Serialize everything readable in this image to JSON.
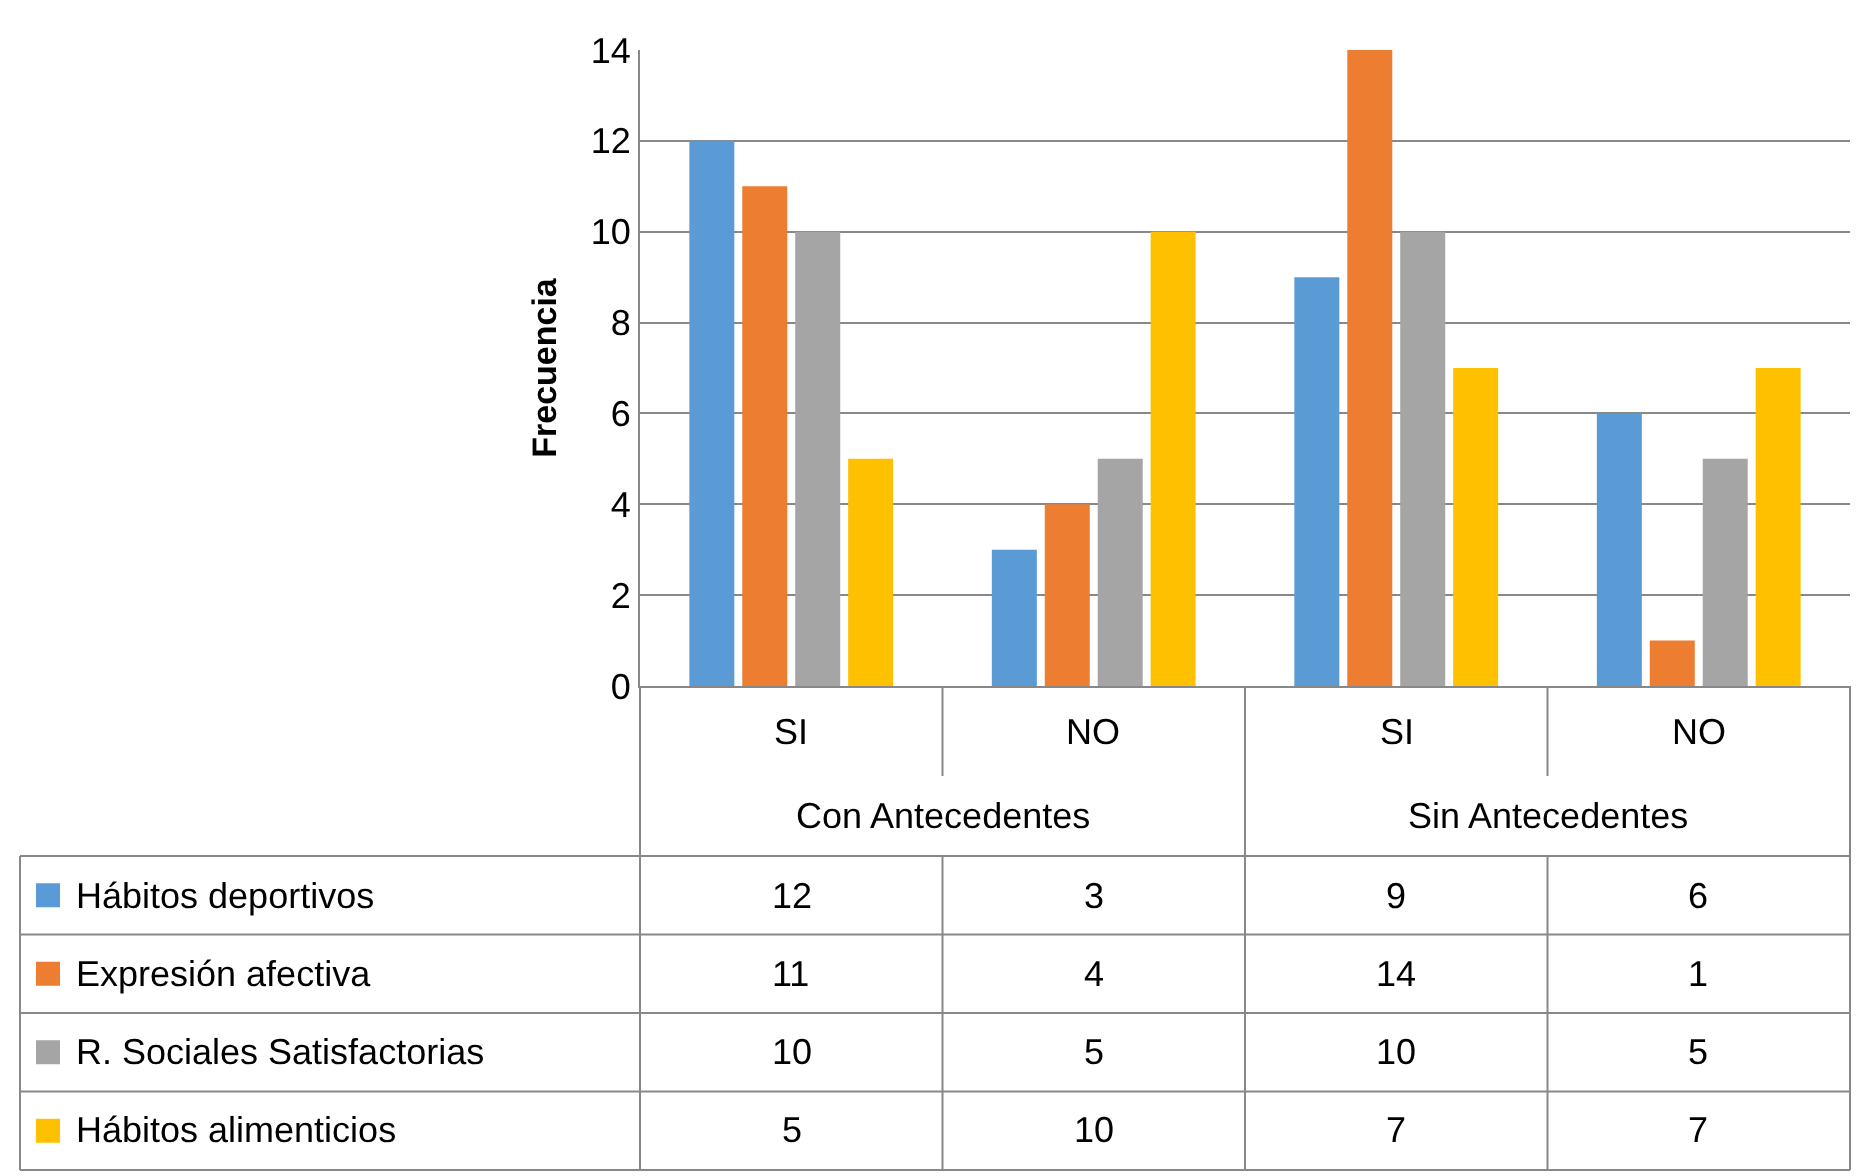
{
  "chart_data": {
    "type": "bar",
    "ylabel": "Frecuencia",
    "categories": [
      "SI",
      "NO",
      "SI",
      "NO"
    ],
    "annotations": [
      "Con Antecedentes",
      "Sin Antecedentes"
    ],
    "series": [
      {
        "name": "Hábitos deportivos",
        "color": "#5b9bd5",
        "values": [
          12,
          3,
          9,
          6
        ]
      },
      {
        "name": "Expresión afectiva",
        "color": "#ed7d31",
        "values": [
          11,
          4,
          14,
          1
        ]
      },
      {
        "name": "R. Sociales Satisfactorias",
        "color": "#a5a5a5",
        "values": [
          10,
          5,
          10,
          5
        ]
      },
      {
        "name": "Hábitos alimenticios",
        "color": "#ffc000",
        "values": [
          5,
          10,
          7,
          7
        ]
      }
    ],
    "ylim": [
      0,
      14
    ],
    "yticks": [
      0,
      2,
      4,
      6,
      8,
      10,
      12,
      14
    ],
    "grid": "y",
    "legend": "bottom",
    "data_labels": true
  }
}
